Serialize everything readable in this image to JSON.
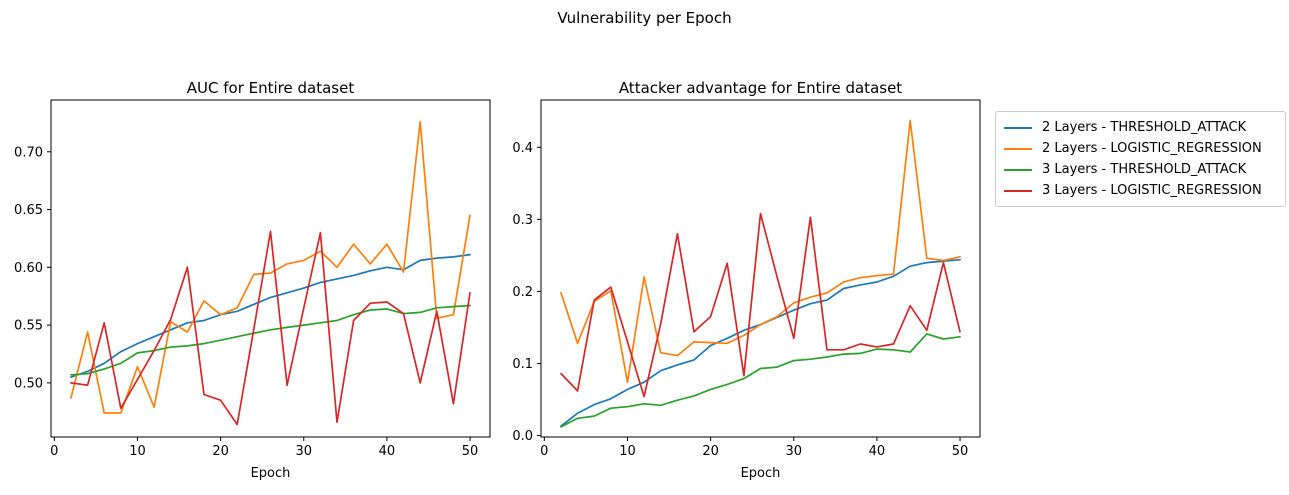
{
  "figure": {
    "suptitle": "Vulnerability per Epoch"
  },
  "legend": {
    "entries": [
      {
        "label": "2 Layers - THRESHOLD_ATTACK",
        "color": "#1f77b4"
      },
      {
        "label": "2 Layers - LOGISTIC_REGRESSION",
        "color": "#ff7f0e"
      },
      {
        "label": "3 Layers - THRESHOLD_ATTACK",
        "color": "#2ca02c"
      },
      {
        "label": "3 Layers - LOGISTIC_REGRESSION",
        "color": "#d62728"
      }
    ]
  },
  "chart_data": [
    {
      "type": "line",
      "title": "AUC for Entire dataset",
      "xlabel": "Epoch",
      "x": [
        2,
        4,
        6,
        8,
        10,
        12,
        14,
        16,
        18,
        20,
        22,
        24,
        26,
        28,
        30,
        32,
        34,
        36,
        38,
        40,
        42,
        44,
        46,
        48,
        50
      ],
      "xlim": [
        -0.4,
        52.4
      ],
      "ylim": [
        0.4532,
        0.7448
      ],
      "xticks": [
        0,
        10,
        20,
        30,
        40,
        50
      ],
      "yticks": [
        0.5,
        0.55,
        0.6,
        0.65,
        0.7
      ],
      "ytick_decimals": 2,
      "grid": false,
      "series": [
        {
          "name": "2 Layers - THRESHOLD_ATTACK",
          "color": "#1f77b4",
          "values": [
            0.505,
            0.51,
            0.517,
            0.527,
            0.534,
            0.54,
            0.546,
            0.552,
            0.554,
            0.559,
            0.562,
            0.568,
            0.574,
            0.578,
            0.582,
            0.587,
            0.59,
            0.593,
            0.597,
            0.6,
            0.598,
            0.606,
            0.608,
            0.609,
            0.611
          ]
        },
        {
          "name": "2 Layers - LOGISTIC_REGRESSION",
          "color": "#ff7f0e",
          "values": [
            0.487,
            0.544,
            0.474,
            0.474,
            0.514,
            0.479,
            0.553,
            0.544,
            0.571,
            0.559,
            0.565,
            0.594,
            0.595,
            0.603,
            0.606,
            0.614,
            0.6,
            0.62,
            0.603,
            0.62,
            0.596,
            0.726,
            0.556,
            0.559,
            0.645
          ]
        },
        {
          "name": "3 Layers - THRESHOLD_ATTACK",
          "color": "#2ca02c",
          "values": [
            0.507,
            0.508,
            0.512,
            0.517,
            0.526,
            0.528,
            0.531,
            0.532,
            0.534,
            0.537,
            0.54,
            0.543,
            0.546,
            0.548,
            0.55,
            0.552,
            0.554,
            0.559,
            0.563,
            0.564,
            0.56,
            0.561,
            0.565,
            0.566,
            0.567
          ]
        },
        {
          "name": "3 Layers - LOGISTIC_REGRESSION",
          "color": "#d62728",
          "values": [
            0.5,
            0.498,
            0.552,
            0.478,
            0.503,
            0.528,
            0.555,
            0.6,
            0.49,
            0.485,
            0.464,
            0.547,
            0.631,
            0.498,
            0.565,
            0.63,
            0.466,
            0.554,
            0.569,
            0.57,
            0.56,
            0.5,
            0.562,
            0.482,
            0.578
          ]
        }
      ]
    },
    {
      "type": "line",
      "title": "Attacker advantage for Entire dataset",
      "xlabel": "Epoch",
      "x": [
        2,
        4,
        6,
        8,
        10,
        12,
        14,
        16,
        18,
        20,
        22,
        24,
        26,
        28,
        30,
        32,
        34,
        36,
        38,
        40,
        42,
        44,
        46,
        48,
        50
      ],
      "xlim": [
        -0.4,
        52.4
      ],
      "ylim": [
        -0.002,
        0.4656
      ],
      "xticks": [
        0,
        10,
        20,
        30,
        40,
        50
      ],
      "yticks": [
        0.0,
        0.1,
        0.2,
        0.3,
        0.4
      ],
      "ytick_decimals": 1,
      "grid": false,
      "series": [
        {
          "name": "2 Layers - THRESHOLD_ATTACK",
          "color": "#1f77b4",
          "values": [
            0.013,
            0.031,
            0.043,
            0.051,
            0.064,
            0.074,
            0.09,
            0.098,
            0.105,
            0.125,
            0.135,
            0.146,
            0.154,
            0.164,
            0.174,
            0.183,
            0.188,
            0.204,
            0.209,
            0.213,
            0.221,
            0.235,
            0.24,
            0.242,
            0.244
          ]
        },
        {
          "name": "2 Layers - LOGISTIC_REGRESSION",
          "color": "#ff7f0e",
          "values": [
            0.198,
            0.128,
            0.186,
            0.201,
            0.074,
            0.22,
            0.115,
            0.111,
            0.13,
            0.129,
            0.128,
            0.139,
            0.154,
            0.165,
            0.184,
            0.192,
            0.198,
            0.213,
            0.219,
            0.222,
            0.224,
            0.437,
            0.246,
            0.243,
            0.248
          ]
        },
        {
          "name": "3 Layers - THRESHOLD_ATTACK",
          "color": "#2ca02c",
          "values": [
            0.012,
            0.024,
            0.027,
            0.038,
            0.04,
            0.044,
            0.042,
            0.049,
            0.055,
            0.064,
            0.071,
            0.079,
            0.093,
            0.095,
            0.104,
            0.106,
            0.109,
            0.113,
            0.114,
            0.12,
            0.119,
            0.116,
            0.141,
            0.134,
            0.137
          ]
        },
        {
          "name": "3 Layers - LOGISTIC_REGRESSION",
          "color": "#d62728",
          "values": [
            0.086,
            0.062,
            0.188,
            0.206,
            0.13,
            0.054,
            0.155,
            0.28,
            0.144,
            0.165,
            0.239,
            0.083,
            0.308,
            0.22,
            0.135,
            0.303,
            0.119,
            0.119,
            0.127,
            0.123,
            0.127,
            0.18,
            0.146,
            0.24,
            0.144
          ]
        }
      ]
    }
  ]
}
